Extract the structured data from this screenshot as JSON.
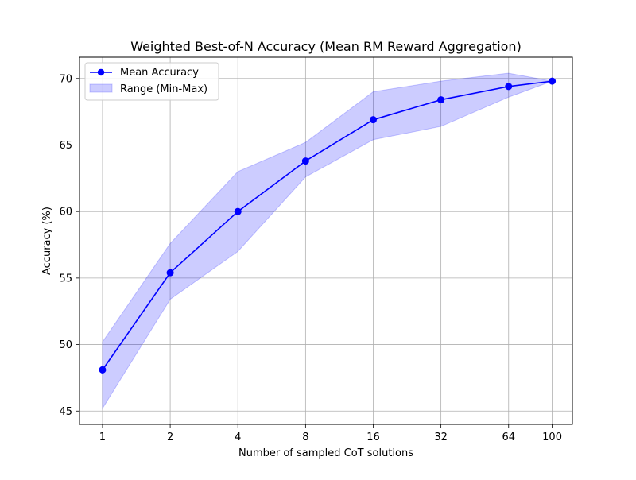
{
  "chart_data": {
    "type": "line",
    "title": "Weighted Best-of-N Accuracy (Mean RM Reward Aggregation)",
    "xlabel": "Number of sampled CoT solutions",
    "ylabel": "Accuracy (%)",
    "x_scale": "log2",
    "x": [
      1,
      2,
      4,
      8,
      16,
      32,
      64,
      100
    ],
    "x_tick_labels": [
      "1",
      "2",
      "4",
      "8",
      "16",
      "32",
      "64",
      "100"
    ],
    "xlim": [
      0.79,
      123
    ],
    "ylim": [
      44.0,
      71.6
    ],
    "y_ticks": [
      45,
      50,
      55,
      60,
      65,
      70
    ],
    "grid": true,
    "legend_position": "upper left",
    "series": [
      {
        "name": "Mean Accuracy",
        "kind": "line-marker",
        "color": "#0000ff",
        "values": [
          48.1,
          55.4,
          60.0,
          63.8,
          66.9,
          68.4,
          69.4,
          69.8
        ]
      },
      {
        "name": "Range (Min-Max)",
        "kind": "band",
        "color": "#0000ff",
        "fill_opacity": 0.2,
        "min": [
          45.2,
          53.4,
          57.0,
          62.6,
          65.4,
          66.4,
          68.6,
          69.8
        ],
        "max": [
          50.2,
          57.6,
          63.0,
          65.2,
          69.0,
          69.8,
          70.4,
          69.8
        ]
      }
    ]
  }
}
